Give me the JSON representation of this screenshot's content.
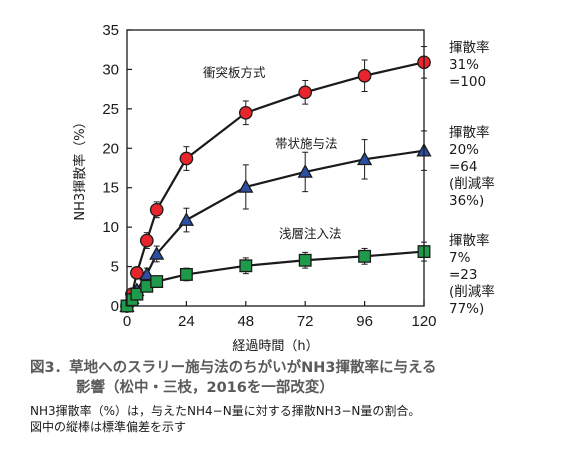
{
  "chart_data": {
    "type": "line",
    "xlabel": "経過時間（h）",
    "ylabel": "NH3揮散率（%）",
    "xlim": [
      0,
      120
    ],
    "ylim": [
      0,
      35
    ],
    "xticks": [
      0,
      24,
      48,
      72,
      96,
      120
    ],
    "yticks": [
      0,
      5,
      10,
      15,
      20,
      25,
      30,
      35
    ],
    "grid": false,
    "series": [
      {
        "name": "衝突板方式",
        "marker": "circle",
        "color": "#e8242c",
        "x": [
          0,
          2,
          4,
          8,
          12,
          24,
          48,
          72,
          96,
          120
        ],
        "y": [
          0,
          1.5,
          4.2,
          8.3,
          12.2,
          18.7,
          24.5,
          27.1,
          29.2,
          30.9
        ],
        "err": [
          0,
          0.3,
          0.6,
          1.0,
          1.0,
          1.5,
          1.5,
          1.5,
          2.0,
          2.0
        ]
      },
      {
        "name": "帯状施与法",
        "marker": "triangle",
        "color": "#2b4fa3",
        "x": [
          0,
          2,
          4,
          8,
          12,
          24,
          48,
          72,
          96,
          120
        ],
        "y": [
          0,
          1.0,
          2.0,
          4.0,
          6.6,
          10.9,
          15.1,
          17.0,
          18.6,
          19.7
        ],
        "err": [
          0,
          0.3,
          0.5,
          0.8,
          1.0,
          1.5,
          2.8,
          2.5,
          2.5,
          2.5
        ]
      },
      {
        "name": "浅層注入法",
        "marker": "square",
        "color": "#1f9a4a",
        "x": [
          0,
          2,
          4,
          8,
          12,
          24,
          48,
          72,
          96,
          120
        ],
        "y": [
          0,
          0.8,
          1.5,
          2.5,
          3.1,
          4.0,
          5.1,
          5.8,
          6.3,
          6.9
        ],
        "err": [
          0,
          0.2,
          0.3,
          0.5,
          0.5,
          0.8,
          1.0,
          1.0,
          1.0,
          1.2
        ]
      }
    ]
  },
  "side_notes": [
    [
      "揮散率",
      "31%",
      "=100"
    ],
    [
      "揮散率",
      "20%",
      "=64",
      "(削減率",
      "36%)"
    ],
    [
      "揮散率",
      "7%",
      "=23",
      "(削減率",
      "77%)"
    ]
  ],
  "caption": {
    "title_line1": "図3．草地へのスラリー施与法のちがいがNH3揮散率に与える",
    "title_line2": "影響（松中・三枝，2016を一部改変）",
    "note_line1": "NH3揮散率（%）は，与えたNH4−N量に対する揮散NH3−N量の割合。",
    "note_line2": "図中の縦棒は標準偏差を示す"
  }
}
